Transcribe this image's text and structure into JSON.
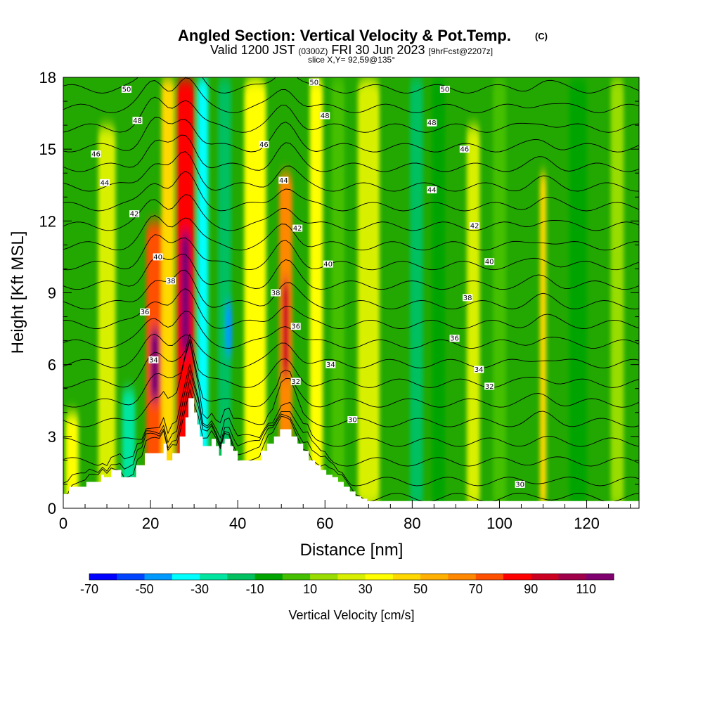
{
  "chart_data": {
    "type": "heatmap",
    "title": "Angled Section: Vertical Velocity & Pot.Temp.",
    "title_mark": "(C)",
    "subtitle_parts": [
      "Valid 1200 JST ",
      "(0300Z)",
      " FRI 30 Jun 2023 ",
      "[9hrFcst@2207z]"
    ],
    "slice_info": "slice X,Y= 92,59@135°",
    "xlabel": "Distance [nm]",
    "ylabel": "Height [Kft MSL]",
    "xlim": [
      0,
      132
    ],
    "ylim": [
      0,
      18
    ],
    "x_ticks": [
      0,
      20,
      40,
      60,
      80,
      100,
      120
    ],
    "y_ticks": [
      0,
      3,
      6,
      9,
      12,
      15,
      18
    ],
    "colorbar": {
      "label": "Vertical Velocity [cm/s]",
      "bounds": [
        -70,
        120
      ],
      "step": 10,
      "tick_labels": [
        "-70",
        "-50",
        "-30",
        "-10",
        "10",
        "30",
        "50",
        "70",
        "90",
        "110"
      ],
      "colors": [
        "#0000ff",
        "#0044ff",
        "#0099ff",
        "#00ffff",
        "#00e6a0",
        "#00c060",
        "#00a400",
        "#44c000",
        "#99dd00",
        "#d8f000",
        "#ffff00",
        "#ffd800",
        "#ffb000",
        "#ff8800",
        "#ff5000",
        "#ff0000",
        "#cc0020",
        "#a0004a",
        "#800070"
      ]
    },
    "velocity_bands": [
      {
        "x": 2,
        "w": 3,
        "ztop": 4.0,
        "v": 30
      },
      {
        "x": 10,
        "w": 4,
        "ztop": 16,
        "v": 20
      },
      {
        "x": 15,
        "w": 3,
        "ztop": 5,
        "v": -30
      },
      {
        "x": 21,
        "w": 4,
        "ztop": 12,
        "v": 70
      },
      {
        "x": 21,
        "w": 2,
        "zbot": 4.5,
        "ztop": 7.5,
        "v": 110
      },
      {
        "x": 24,
        "w": 3,
        "ztop": 18,
        "v": 40
      },
      {
        "x": 28,
        "w": 4,
        "ztop": 18,
        "v": 80
      },
      {
        "x": 28,
        "w": 2,
        "zbot": 6.5,
        "ztop": 11.5,
        "v": 120
      },
      {
        "x": 32,
        "w": 2.5,
        "ztop": 18,
        "v": -40
      },
      {
        "x": 37,
        "w": 3,
        "ztop": 18,
        "v": -20
      },
      {
        "x": 38,
        "w": 1.5,
        "zbot": 6.5,
        "ztop": 8.5,
        "v": -50
      },
      {
        "x": 44,
        "w": 5,
        "ztop": 18,
        "v": 30
      },
      {
        "x": 51,
        "w": 3,
        "ztop": 14,
        "v": 60
      },
      {
        "x": 51,
        "w": 1.5,
        "zbot": 5.5,
        "ztop": 9.5,
        "v": 90
      },
      {
        "x": 58,
        "w": 3,
        "ztop": 18,
        "v": 30
      },
      {
        "x": 63,
        "w": 3,
        "ztop": 18,
        "v": 0
      },
      {
        "x": 70,
        "w": 5,
        "ztop": 18,
        "v": 20
      },
      {
        "x": 81,
        "w": 3,
        "ztop": 18,
        "v": -20
      },
      {
        "x": 86,
        "w": 3,
        "ztop": 18,
        "v": -10
      },
      {
        "x": 94,
        "w": 3,
        "ztop": 16,
        "v": 20
      },
      {
        "x": 100,
        "w": 3,
        "ztop": 18,
        "v": 0
      },
      {
        "x": 110,
        "w": 1.5,
        "ztop": 14,
        "v": 40
      },
      {
        "x": 118,
        "w": 4,
        "ztop": 18,
        "v": -10
      },
      {
        "x": 127,
        "w": 3,
        "ztop": 18,
        "v": 10
      }
    ],
    "terrain": {
      "x": [
        0,
        1.3,
        5.3,
        8.7,
        9.3,
        11,
        13.3,
        16.7,
        18.7,
        23,
        23.7,
        25,
        26.7,
        28,
        28.7,
        30,
        30.7,
        31.3,
        32,
        33,
        34,
        35,
        35.7,
        36.3,
        37,
        38.3,
        39,
        40,
        42.7,
        45.3,
        46.7,
        48.3,
        49.7,
        51,
        52.3,
        53.7,
        55,
        56.3,
        57.7,
        59,
        60.3,
        61.7,
        63,
        64.3,
        65.7,
        67,
        68.3,
        69.7,
        71,
        132
      ],
      "z": [
        0.6,
        0.9,
        1.1,
        1.4,
        1.3,
        1.6,
        1.3,
        1.8,
        2.3,
        2.7,
        2.0,
        2.3,
        3.0,
        3.8,
        4.6,
        4.0,
        3.5,
        3.0,
        2.6,
        2.6,
        2.9,
        2.6,
        2.2,
        2.7,
        2.9,
        2.6,
        2.4,
        2.0,
        2.0,
        2.4,
        2.7,
        3.0,
        3.3,
        3.3,
        3.0,
        2.7,
        2.4,
        2.0,
        1.8,
        1.6,
        1.4,
        1.3,
        1.1,
        0.9,
        0.7,
        0.5,
        0.4,
        0.3,
        0.3,
        0.3
      ]
    },
    "theta_contours": {
      "levels": [
        30,
        31,
        32,
        33,
        34,
        35,
        36,
        37,
        38,
        39,
        40,
        41,
        42,
        43,
        44,
        45,
        46,
        47,
        48,
        49,
        50,
        51
      ],
      "labels": [
        {
          "x": 14.5,
          "z": 17.5,
          "t": "50"
        },
        {
          "x": 57.5,
          "z": 17.8,
          "t": "50"
        },
        {
          "x": 87.5,
          "z": 17.5,
          "t": "50"
        },
        {
          "x": 17,
          "z": 16.2,
          "t": "48"
        },
        {
          "x": 60,
          "z": 16.4,
          "t": "48"
        },
        {
          "x": 84.5,
          "z": 16.1,
          "t": "48"
        },
        {
          "x": 7.5,
          "z": 14.8,
          "t": "46"
        },
        {
          "x": 46,
          "z": 15.2,
          "t": "46"
        },
        {
          "x": 92,
          "z": 15.0,
          "t": "46"
        },
        {
          "x": 9.5,
          "z": 13.6,
          "t": "44"
        },
        {
          "x": 50.5,
          "z": 13.7,
          "t": "44"
        },
        {
          "x": 84.5,
          "z": 13.3,
          "t": "44"
        },
        {
          "x": 16.3,
          "z": 12.3,
          "t": "42"
        },
        {
          "x": 53.7,
          "z": 11.7,
          "t": "42"
        },
        {
          "x": 94.3,
          "z": 11.8,
          "t": "42"
        },
        {
          "x": 21.7,
          "z": 10.5,
          "t": "40"
        },
        {
          "x": 60.7,
          "z": 10.2,
          "t": "40"
        },
        {
          "x": 97.7,
          "z": 10.3,
          "t": "40"
        },
        {
          "x": 24.7,
          "z": 9.5,
          "t": "38"
        },
        {
          "x": 48.7,
          "z": 9.0,
          "t": "38"
        },
        {
          "x": 92.7,
          "z": 8.8,
          "t": "38"
        },
        {
          "x": 18.7,
          "z": 8.2,
          "t": "36"
        },
        {
          "x": 53.3,
          "z": 7.6,
          "t": "36"
        },
        {
          "x": 89.7,
          "z": 7.1,
          "t": "36"
        },
        {
          "x": 20.7,
          "z": 6.2,
          "t": "34"
        },
        {
          "x": 61.3,
          "z": 6.0,
          "t": "34"
        },
        {
          "x": 95.3,
          "z": 5.8,
          "t": "34"
        },
        {
          "x": 53.3,
          "z": 5.3,
          "t": "32"
        },
        {
          "x": 97.7,
          "z": 5.1,
          "t": "32"
        },
        {
          "x": 66.3,
          "z": 3.7,
          "t": "30"
        },
        {
          "x": 104.7,
          "z": 1.0,
          "t": "30"
        }
      ]
    }
  }
}
